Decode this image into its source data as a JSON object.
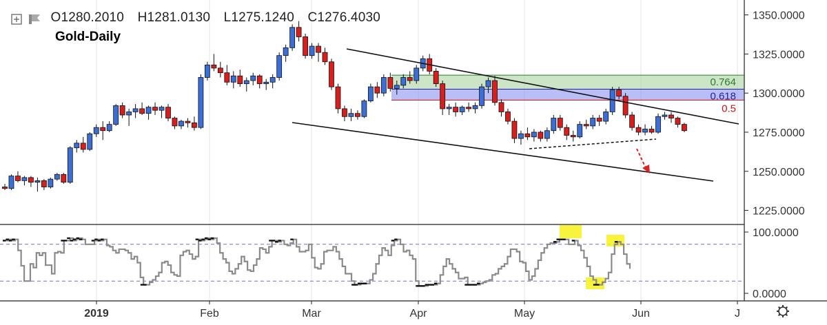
{
  "header": {
    "open": "O1280.2010",
    "high": "H1281.0130",
    "low": "L1275.1240",
    "close": "C1276.4030",
    "symbol_title": "Gold-Daily"
  },
  "colors": {
    "up_candle": "#3b6fd6",
    "down_candle": "#d91e1e",
    "fib_green": "#a8d4a0",
    "fib_blue": "#8b93f0",
    "oscillator": "#8a8a8a",
    "highlight": "#f7f21b"
  },
  "icons": [
    "plus-box-icon",
    "flag-icon",
    "settings-gear-icon"
  ],
  "chart_data": [
    {
      "type": "candlestick",
      "title": "Gold-Daily",
      "ylim": [
        1216,
        1356
      ],
      "y_ticks": [
        "1350.0000",
        "1325.0000",
        "1300.0000",
        "1275.0000",
        "1250.0000",
        "1225.0000"
      ],
      "x_ticks": [
        "2019",
        "Feb",
        "Mar",
        "Apr",
        "May",
        "Jun",
        "J"
      ],
      "fib_levels": [
        {
          "label": "0.764",
          "value": 1311,
          "color": "#2d7a2d"
        },
        {
          "label": "0.618",
          "value": 1302.5,
          "color": "#2222aa"
        },
        {
          "label": "0.5",
          "value": 1295.5,
          "color": "#cc1111"
        }
      ],
      "candles": [
        [
          1240,
          1242,
          1238,
          1239
        ],
        [
          1239,
          1248,
          1238,
          1247
        ],
        [
          1247,
          1250,
          1243,
          1244
        ],
        [
          1244,
          1247,
          1241,
          1246
        ],
        [
          1246,
          1247,
          1240,
          1243
        ],
        [
          1243,
          1246,
          1237,
          1244
        ],
        [
          1244,
          1245,
          1238,
          1240
        ],
        [
          1240,
          1246,
          1239,
          1245
        ],
        [
          1245,
          1249,
          1244,
          1248
        ],
        [
          1248,
          1249,
          1242,
          1243
        ],
        [
          1243,
          1266,
          1242,
          1265
        ],
        [
          1265,
          1270,
          1262,
          1268
        ],
        [
          1268,
          1272,
          1262,
          1264
        ],
        [
          1264,
          1275,
          1263,
          1274
        ],
        [
          1274,
          1280,
          1272,
          1278
        ],
        [
          1278,
          1282,
          1270,
          1276
        ],
        [
          1276,
          1282,
          1275,
          1280
        ],
        [
          1280,
          1293,
          1279,
          1292
        ],
        [
          1292,
          1294,
          1284,
          1286
        ],
        [
          1286,
          1290,
          1279,
          1288
        ],
        [
          1288,
          1293,
          1284,
          1290
        ],
        [
          1290,
          1294,
          1286,
          1287
        ],
        [
          1287,
          1292,
          1283,
          1291
        ],
        [
          1291,
          1294,
          1286,
          1289
        ],
        [
          1289,
          1292,
          1284,
          1291
        ],
        [
          1291,
          1293,
          1282,
          1284
        ],
        [
          1284,
          1285,
          1277,
          1279
        ],
        [
          1279,
          1283,
          1277,
          1282
        ],
        [
          1282,
          1284,
          1278,
          1281
        ],
        [
          1281,
          1285,
          1276,
          1278
        ],
        [
          1278,
          1312,
          1277,
          1310
        ],
        [
          1310,
          1320,
          1308,
          1318
        ],
        [
          1318,
          1325,
          1314,
          1316
        ],
        [
          1316,
          1320,
          1310,
          1313
        ],
        [
          1313,
          1318,
          1305,
          1307
        ],
        [
          1307,
          1314,
          1303,
          1311
        ],
        [
          1311,
          1315,
          1304,
          1306
        ],
        [
          1306,
          1310,
          1301,
          1308
        ],
        [
          1308,
          1313,
          1305,
          1311
        ],
        [
          1311,
          1312,
          1303,
          1306
        ],
        [
          1306,
          1309,
          1302,
          1307
        ],
        [
          1307,
          1312,
          1303,
          1310
        ],
        [
          1310,
          1326,
          1308,
          1324
        ],
        [
          1324,
          1331,
          1320,
          1329
        ],
        [
          1329,
          1344,
          1327,
          1342
        ],
        [
          1342,
          1346,
          1333,
          1336
        ],
        [
          1336,
          1338,
          1322,
          1324
        ],
        [
          1324,
          1332,
          1322,
          1330
        ],
        [
          1330,
          1332,
          1320,
          1326
        ],
        [
          1326,
          1329,
          1318,
          1320
        ],
        [
          1320,
          1322,
          1302,
          1304
        ],
        [
          1304,
          1306,
          1287,
          1290
        ],
        [
          1290,
          1292,
          1282,
          1285
        ],
        [
          1285,
          1290,
          1282,
          1287
        ],
        [
          1287,
          1289,
          1283,
          1285
        ],
        [
          1285,
          1296,
          1284,
          1295
        ],
        [
          1295,
          1306,
          1294,
          1304
        ],
        [
          1304,
          1307,
          1297,
          1300
        ],
        [
          1300,
          1312,
          1298,
          1310
        ],
        [
          1310,
          1313,
          1301,
          1303
        ],
        [
          1303,
          1308,
          1299,
          1305
        ],
        [
          1305,
          1312,
          1303,
          1310
        ],
        [
          1310,
          1314,
          1306,
          1308
        ],
        [
          1308,
          1318,
          1306,
          1316
        ],
        [
          1316,
          1324,
          1314,
          1322
        ],
        [
          1322,
          1325,
          1312,
          1314
        ],
        [
          1314,
          1316,
          1304,
          1306
        ],
        [
          1306,
          1308,
          1286,
          1290
        ],
        [
          1290,
          1293,
          1286,
          1291
        ],
        [
          1291,
          1294,
          1285,
          1288
        ],
        [
          1288,
          1292,
          1286,
          1291
        ],
        [
          1291,
          1294,
          1288,
          1290
        ],
        [
          1290,
          1294,
          1287,
          1292
        ],
        [
          1292,
          1306,
          1290,
          1304
        ],
        [
          1304,
          1310,
          1300,
          1308
        ],
        [
          1308,
          1311,
          1292,
          1294
        ],
        [
          1294,
          1296,
          1285,
          1288
        ],
        [
          1288,
          1290,
          1280,
          1282
        ],
        [
          1282,
          1284,
          1268,
          1271
        ],
        [
          1271,
          1276,
          1267,
          1274
        ],
        [
          1274,
          1278,
          1270,
          1272
        ],
        [
          1272,
          1277,
          1269,
          1275
        ],
        [
          1275,
          1276,
          1269,
          1271
        ],
        [
          1271,
          1278,
          1269,
          1276
        ],
        [
          1276,
          1286,
          1274,
          1284
        ],
        [
          1284,
          1286,
          1276,
          1278
        ],
        [
          1278,
          1280,
          1270,
          1273
        ],
        [
          1273,
          1276,
          1269,
          1272
        ],
        [
          1272,
          1282,
          1271,
          1280
        ],
        [
          1280,
          1283,
          1277,
          1279
        ],
        [
          1279,
          1286,
          1277,
          1284
        ],
        [
          1284,
          1286,
          1279,
          1282
        ],
        [
          1282,
          1290,
          1280,
          1288
        ],
        [
          1288,
          1304,
          1286,
          1302
        ],
        [
          1302,
          1304,
          1296,
          1298
        ],
        [
          1298,
          1300,
          1284,
          1286
        ],
        [
          1286,
          1288,
          1276,
          1278
        ],
        [
          1278,
          1280,
          1273,
          1275
        ],
        [
          1275,
          1280,
          1273,
          1277
        ],
        [
          1277,
          1279,
          1274,
          1275
        ],
        [
          1275,
          1287,
          1274,
          1285
        ],
        [
          1285,
          1288,
          1283,
          1286
        ],
        [
          1286,
          1288,
          1281,
          1284
        ],
        [
          1284,
          1285,
          1278,
          1280
        ],
        [
          1280,
          1281,
          1275,
          1276
        ]
      ]
    },
    {
      "type": "line",
      "y_ticks": [
        "100.0000",
        "0.0000"
      ],
      "ylim": [
        0,
        100
      ],
      "levels": [
        80,
        20
      ],
      "series": [
        {
          "values": [
            86,
            86,
            88,
            86,
            88,
            70,
            45,
            20,
            20,
            48,
            42,
            66,
            62,
            66,
            46,
            46,
            32,
            66,
            68,
            66,
            86,
            86,
            90,
            86,
            88,
            90,
            88,
            80,
            80,
            80,
            86,
            88,
            86,
            88,
            78,
            76,
            70,
            66,
            72,
            72,
            70,
            66,
            56,
            60,
            50,
            26,
            14,
            14,
            18,
            22,
            28,
            34,
            50,
            52,
            46,
            34,
            30,
            28,
            62,
            68,
            70,
            64,
            56,
            60,
            88,
            86,
            88,
            90,
            88,
            90,
            82,
            66,
            56,
            50,
            36,
            32,
            40,
            48,
            60,
            52,
            38,
            36,
            46,
            56,
            74,
            72,
            66,
            76,
            86,
            86,
            84,
            86,
            80,
            78,
            82,
            88,
            76,
            68,
            68,
            70,
            80,
            58,
            42,
            40,
            48,
            68,
            70,
            70,
            76,
            68,
            56,
            44,
            32,
            32,
            20,
            14,
            14,
            16,
            16,
            16,
            22,
            32,
            48,
            62,
            74,
            70,
            62,
            78,
            86,
            88,
            80,
            68,
            70,
            62,
            56,
            20,
            12,
            12,
            12,
            14,
            14,
            14,
            16,
            30,
            44,
            56,
            48,
            40,
            34,
            24,
            24,
            26,
            14,
            14,
            14,
            14,
            16,
            18,
            20,
            22,
            30,
            32,
            40,
            44,
            48,
            60,
            72,
            72,
            68,
            52,
            50,
            36,
            22,
            28,
            40,
            54,
            66,
            74,
            80,
            82,
            82,
            84,
            88,
            88,
            88,
            80,
            80,
            86,
            78,
            70,
            58,
            44,
            28,
            22,
            14,
            14,
            18,
            24,
            34,
            64,
            80,
            84,
            80,
            64,
            48,
            40
          ]
        }
      ]
    }
  ]
}
